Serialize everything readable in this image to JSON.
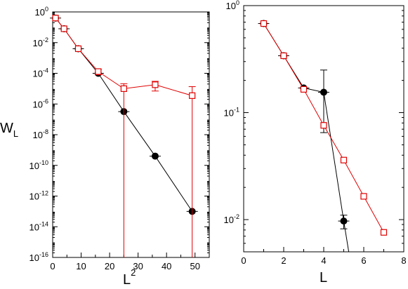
{
  "chart_data": [
    {
      "type": "scatter",
      "ylabel_main": "W",
      "ylabel_sub": "L",
      "xlabel_main": "L",
      "xlabel_sup": "2",
      "xlim": [
        0,
        55
      ],
      "ylim_exp": [
        -16,
        0
      ],
      "yscale": "log",
      "x_ticks": [
        "0",
        "10",
        "20",
        "30",
        "40",
        "50"
      ],
      "x_tick_values": [
        0,
        10,
        20,
        30,
        40,
        50
      ],
      "y_tick_exponents": [
        0,
        -2,
        -4,
        -6,
        -8,
        -10,
        -12,
        -14,
        -16
      ],
      "y_tick_base": "10",
      "y_tick_sup": [
        "0",
        "-2",
        "-4",
        "-6",
        "-8",
        "-10",
        "-12",
        "-14",
        "-16"
      ],
      "grid": false,
      "series": [
        {
          "marker": "filled-circle",
          "color": "#000000",
          "points": [
            {
              "x": 1,
              "y": 0.4,
              "err_lo": 0,
              "err_hi": 0
            },
            {
              "x": 4,
              "y": 0.08,
              "err_lo": 0,
              "err_hi": 0
            },
            {
              "x": 9,
              "y": 0.004,
              "err_lo": 0,
              "err_hi": 0
            },
            {
              "x": 16,
              "y": 0.0001,
              "err_lo": 0,
              "err_hi": 0
            },
            {
              "x": 25,
              "y": 3.2e-07,
              "err_lo": 0,
              "err_hi": 0
            },
            {
              "x": 36,
              "y": 4e-10,
              "err_lo": 0,
              "err_hi": 0
            },
            {
              "x": 49,
              "y": 1e-13,
              "err_lo": 0,
              "err_hi": 0
            }
          ]
        },
        {
          "marker": "open-square",
          "color": "#e00000",
          "points": [
            {
              "x": 1,
              "y": 0.4,
              "err_lo": 0,
              "err_hi": 0
            },
            {
              "x": 4,
              "y": 0.08,
              "err_lo": 0,
              "err_hi": 0
            },
            {
              "x": 9,
              "y": 0.004,
              "err_lo": 0,
              "err_hi": 0
            },
            {
              "x": 16,
              "y": 0.00013,
              "err_lo": 5e-05,
              "err_hi": 5e-05
            },
            {
              "x": 25,
              "y": 1e-05,
              "err_lo": 1e-05,
              "err_hi": 1.1e-05
            },
            {
              "x": 36,
              "y": 1.8e-05,
              "err_lo": 1.1e-05,
              "err_hi": 1.2e-05
            },
            {
              "x": 49,
              "y": 3.5e-06,
              "err_lo": 3.5e-06,
              "err_hi": 1e-05
            }
          ]
        }
      ]
    },
    {
      "type": "scatter",
      "xlabel": "L",
      "xlim": [
        0,
        8
      ],
      "ylim": [
        0.005,
        1
      ],
      "yscale": "log",
      "x_ticks": [
        "0",
        "2",
        "4",
        "6",
        "8"
      ],
      "x_tick_values": [
        0,
        2,
        4,
        6,
        8
      ],
      "y_tick_values": [
        1,
        0.1,
        0.01
      ],
      "y_tick_sup": [
        "0",
        "-1",
        "-2"
      ],
      "y_tick_base": "10",
      "grid": false,
      "series": [
        {
          "marker": "filled-circle",
          "color": "#000000",
          "points": [
            {
              "x": 1,
              "y": 0.68,
              "err_lo": 0,
              "err_hi": 0
            },
            {
              "x": 2,
              "y": 0.34,
              "err_lo": 0,
              "err_hi": 0
            },
            {
              "x": 3,
              "y": 0.17,
              "err_lo": 0,
              "err_hi": 0
            },
            {
              "x": 4,
              "y": 0.155,
              "err_lo": 0.09,
              "err_hi": 0.095
            },
            {
              "x": 5,
              "y": 0.0097,
              "err_lo": 0.0015,
              "err_hi": 0.0013
            }
          ],
          "tail_to": {
            "x": 5.25,
            "y": 0.005
          }
        },
        {
          "marker": "open-square",
          "color": "#e00000",
          "points": [
            {
              "x": 1,
              "y": 0.68,
              "err_lo": 0,
              "err_hi": 0
            },
            {
              "x": 2,
              "y": 0.34,
              "err_lo": 0,
              "err_hi": 0
            },
            {
              "x": 3,
              "y": 0.165,
              "err_lo": 0,
              "err_hi": 0
            },
            {
              "x": 4,
              "y": 0.076,
              "err_lo": 0,
              "err_hi": 0
            },
            {
              "x": 5,
              "y": 0.036,
              "err_lo": 0,
              "err_hi": 0
            },
            {
              "x": 6,
              "y": 0.0165,
              "err_lo": 0,
              "err_hi": 0
            },
            {
              "x": 7,
              "y": 0.0076,
              "err_lo": 0,
              "err_hi": 0
            }
          ]
        }
      ]
    }
  ]
}
